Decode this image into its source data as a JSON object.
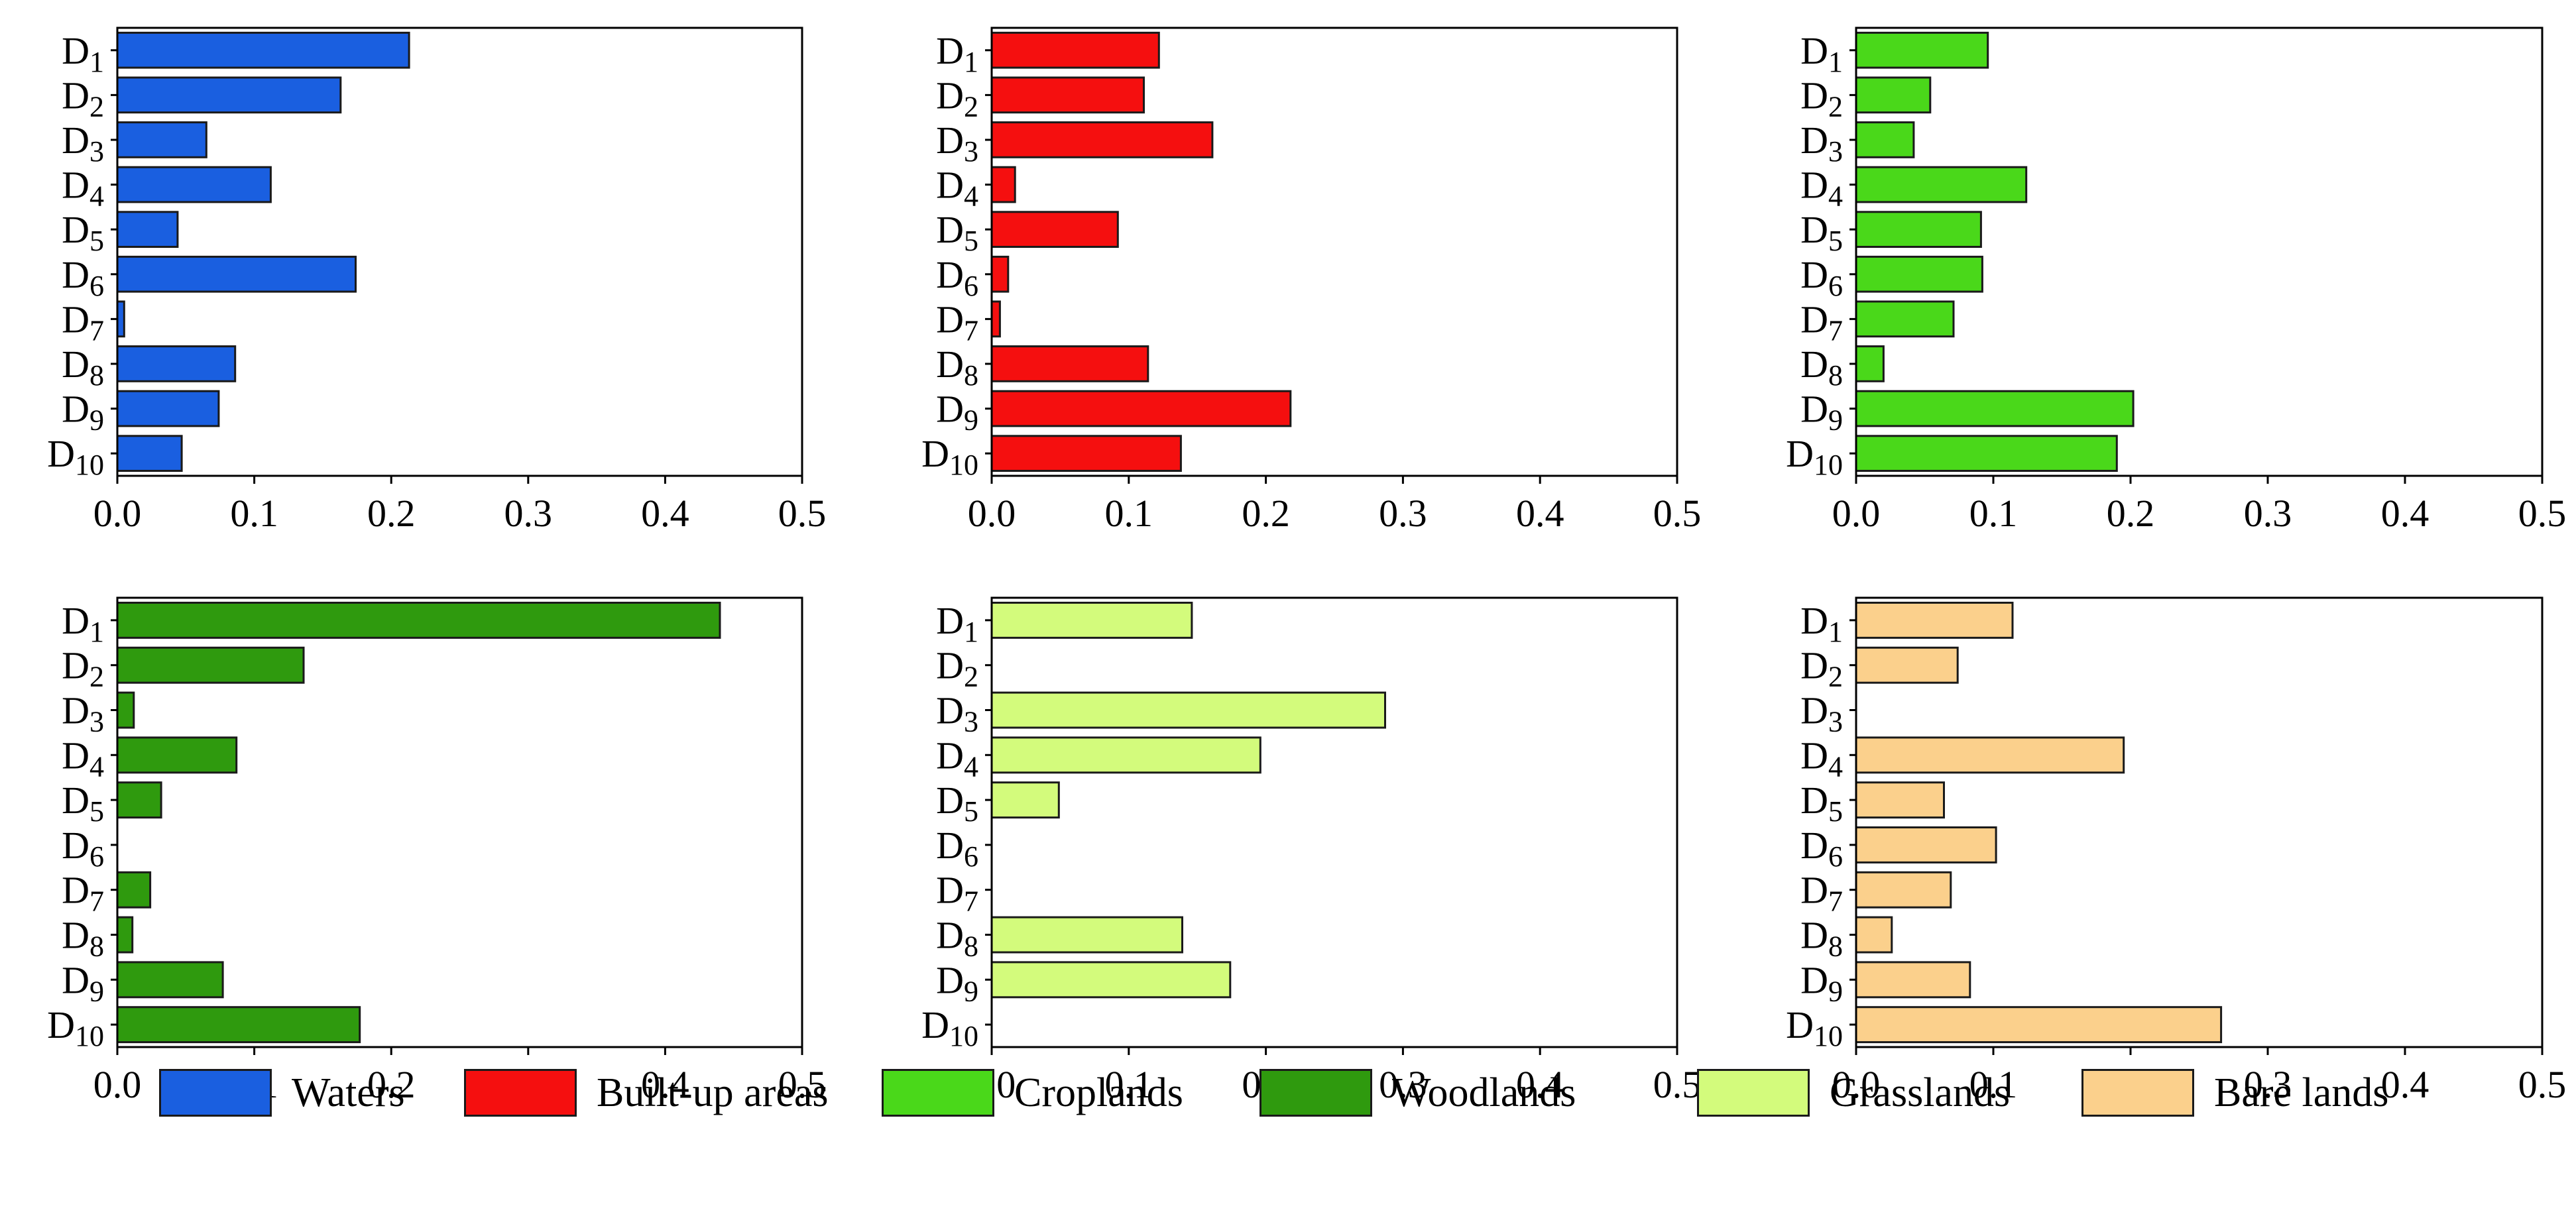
{
  "chart_data": [
    {
      "type": "bar",
      "orientation": "horizontal",
      "series": [
        {
          "name": "Waters",
          "color": "#1a5fe0",
          "values": [
            0.213,
            0.163,
            0.065,
            0.112,
            0.044,
            0.174,
            0.005,
            0.086,
            0.074,
            0.047
          ]
        }
      ]
    },
    {
      "type": "bar",
      "orientation": "horizontal",
      "series": [
        {
          "name": "Built-up areas",
          "color": "#f50f0f",
          "values": [
            0.122,
            0.111,
            0.161,
            0.017,
            0.092,
            0.012,
            0.006,
            0.114,
            0.218,
            0.138
          ]
        }
      ]
    },
    {
      "type": "bar",
      "orientation": "horizontal",
      "series": [
        {
          "name": "Croplands",
          "color": "#4ad81a",
          "values": [
            0.096,
            0.054,
            0.042,
            0.124,
            0.091,
            0.092,
            0.071,
            0.02,
            0.202,
            0.19
          ]
        }
      ]
    },
    {
      "type": "bar",
      "orientation": "horizontal",
      "series": [
        {
          "name": "Woodlands",
          "color": "#2f9a0e",
          "values": [
            0.44,
            0.136,
            0.012,
            0.087,
            0.032,
            0.0,
            0.024,
            0.011,
            0.077,
            0.177
          ]
        }
      ]
    },
    {
      "type": "bar",
      "orientation": "horizontal",
      "series": [
        {
          "name": "Grasslands",
          "color": "#d3fb7c",
          "values": [
            0.146,
            0.0,
            0.287,
            0.196,
            0.049,
            0.0,
            0.0,
            0.139,
            0.174,
            0.0
          ]
        }
      ]
    },
    {
      "type": "bar",
      "orientation": "horizontal",
      "series": [
        {
          "name": "Bare lands",
          "color": "#fbd08c",
          "values": [
            0.114,
            0.074,
            0.0,
            0.195,
            0.064,
            0.102,
            0.069,
            0.026,
            0.083,
            0.266
          ]
        }
      ]
    }
  ],
  "shared_axes": {
    "categories": [
      "D",
      "D",
      "D",
      "D",
      "D",
      "D",
      "D",
      "D",
      "D",
      "D"
    ],
    "category_subscripts": [
      "1",
      "2",
      "3",
      "4",
      "5",
      "6",
      "7",
      "8",
      "9",
      "10"
    ],
    "xlim": [
      0,
      0.5
    ],
    "xticks": [
      "0.0",
      "0.1",
      "0.2",
      "0.3",
      "0.4",
      "0.5"
    ]
  },
  "legend": [
    {
      "label": "Waters",
      "color": "#1a5fe0"
    },
    {
      "label": "Built-up areas",
      "color": "#f50f0f"
    },
    {
      "label": "Croplands",
      "color": "#4ad81a"
    },
    {
      "label": "Woodlands",
      "color": "#2f9a0e"
    },
    {
      "label": "Grasslands",
      "color": "#d3fb7c"
    },
    {
      "label": "Bare lands",
      "color": "#fbd08c"
    }
  ]
}
